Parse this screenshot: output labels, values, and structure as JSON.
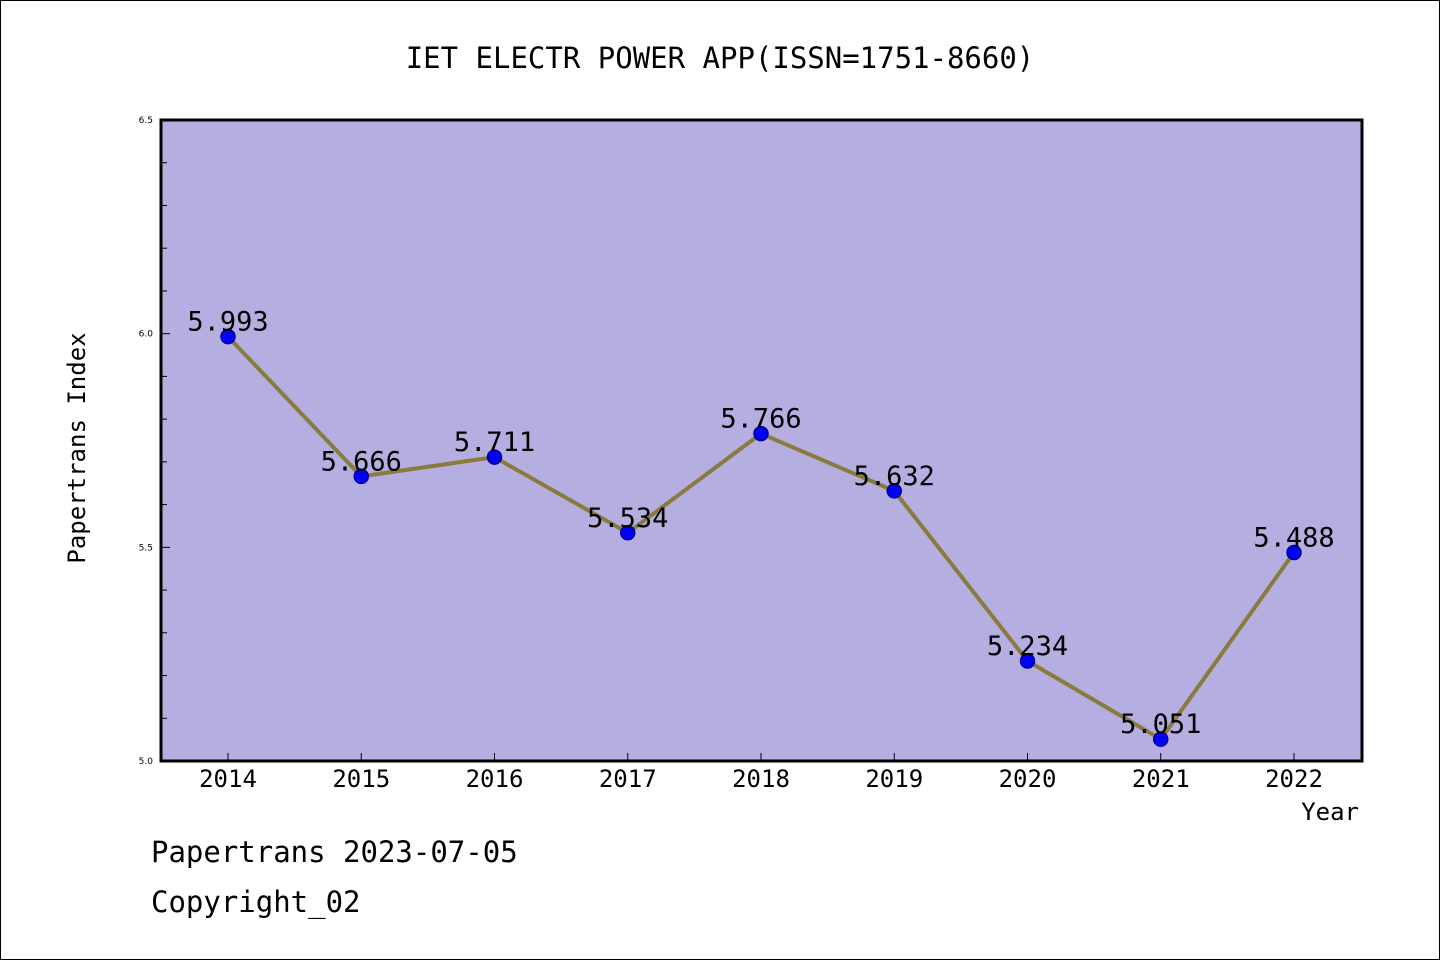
{
  "chart_data": {
    "type": "line",
    "title": "IET ELECTR POWER APP(ISSN=1751-8660)",
    "xlabel": "Year",
    "ylabel": "Papertrans Index",
    "categories": [
      "2014",
      "2015",
      "2016",
      "2017",
      "2018",
      "2019",
      "2020",
      "2021",
      "2022"
    ],
    "series": [
      {
        "values": [
          5.993,
          5.666,
          5.711,
          5.534,
          5.766,
          5.632,
          5.234,
          5.051,
          5.488
        ],
        "labels": [
          "5.993",
          "5.666",
          "5.711",
          "5.534",
          "5.766",
          "5.632",
          "5.234",
          "5.051",
          "5.488"
        ]
      }
    ],
    "ylim": [
      5.0,
      6.5
    ],
    "yticks": [
      "5.0",
      "5.5",
      "6.0",
      "6.5"
    ],
    "grid": false,
    "colors": {
      "plot_background": "#b5afe1",
      "line": "#8b7a3e",
      "marker": "#0000ff",
      "marker_edge": "#00008b"
    }
  },
  "footer": {
    "line1": "Papertrans 2023-07-05",
    "line2": "Copyright_02"
  }
}
